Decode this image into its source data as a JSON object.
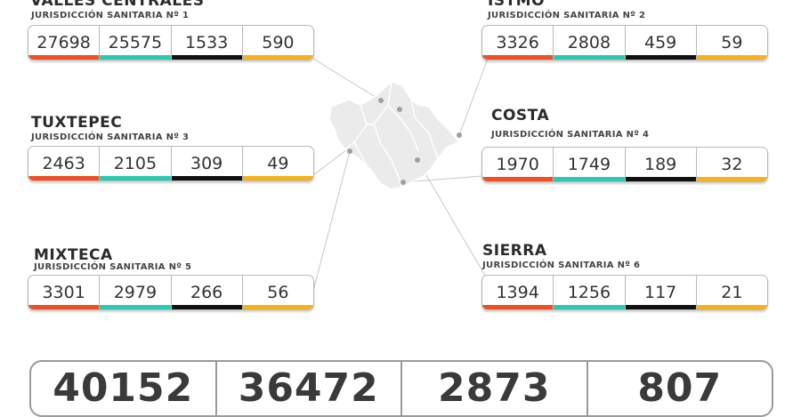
{
  "regions": [
    {
      "name": "VALLES CENTRALES",
      "sub": "JURISDICCIÓN SANITARIA Nº 1",
      "values": [
        "27698",
        "25575",
        "1533",
        "590"
      ]
    },
    {
      "name": "ISTMO",
      "sub": "JURISDICCIÓN SANITARIA Nº 2",
      "values": [
        "3326",
        "2808",
        "459",
        "59"
      ]
    },
    {
      "name": "TUXTEPEC",
      "sub": "JURISDICCIÓN SANITARIA Nº 3",
      "values": [
        "2463",
        "2105",
        "309",
        "49"
      ]
    },
    {
      "name": "COSTA",
      "sub": "JURISDICCIÓN SANITARIA Nº 4",
      "values": [
        "1970",
        "1749",
        "189",
        "32"
      ]
    },
    {
      "name": "MIXTECA",
      "sub": "JURISDICCIÓN SANITARIA Nº 5",
      "values": [
        "3301",
        "2979",
        "266",
        "56"
      ]
    },
    {
      "name": "SIERRA",
      "sub": "JURISDICCIÓN SANITARIA Nº 6",
      "values": [
        "1394",
        "1256",
        "117",
        "21"
      ]
    }
  ],
  "totals": [
    "40152",
    "36472",
    "2873",
    "807"
  ],
  "colors": {
    "orange": "#f04e23",
    "teal": "#2bc9b4",
    "black": "#111111",
    "yellow": "#f7b21a"
  }
}
